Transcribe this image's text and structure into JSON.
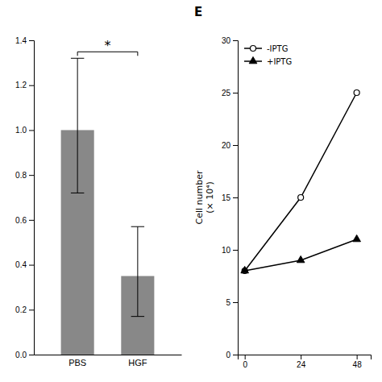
{
  "chart_data": [
    {
      "type": "bar",
      "categories": [
        "PBS",
        "HGF"
      ],
      "values": [
        1.0,
        0.35
      ],
      "errors_upper": [
        0.32,
        0.22
      ],
      "errors_lower": [
        0.28,
        0.18
      ],
      "color": "#888888",
      "ylim": [
        0,
        1.4
      ],
      "yticks": [
        {
          "value": 0,
          "label": "0.0"
        },
        0.2,
        0.4,
        0.6,
        0.8,
        {
          "value": 1.0,
          "label": "1.0"
        },
        1.2,
        1.4
      ],
      "annotations": [
        {
          "text": "*"
        }
      ],
      "grid": false
    },
    {
      "type": "line",
      "title": "E",
      "ylabel": "Cell number\n(× 10⁴)",
      "x": [
        0,
        24,
        48
      ],
      "xlim": [
        -3,
        54
      ],
      "xticks": [
        0,
        24,
        48
      ],
      "ylim": [
        0,
        30
      ],
      "yticks": [
        0,
        5,
        10,
        15,
        20,
        25,
        30
      ],
      "series": [
        {
          "name": "-IPTG",
          "color": "#000000",
          "marker": "open-circle",
          "values": [
            8,
            15,
            25
          ]
        },
        {
          "name": "+IPTG",
          "color": "#000000",
          "marker": "triangle",
          "values": [
            8,
            9,
            11
          ]
        }
      ],
      "legend": "upper-left",
      "grid": false
    }
  ]
}
